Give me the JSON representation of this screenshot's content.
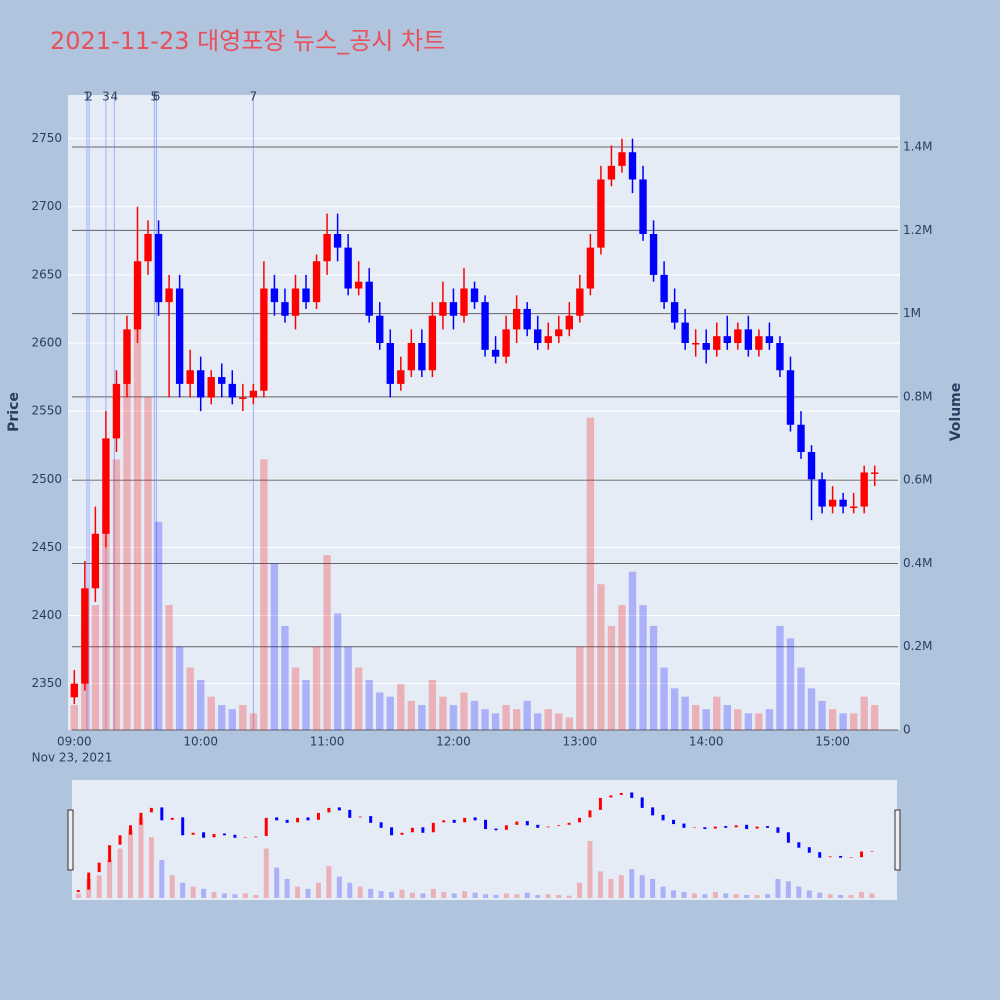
{
  "chart_data": {
    "type": "candlestick",
    "title": "2021-11-23 대영포장 뉴스_공시 차트",
    "x_date_label": "Nov 23, 2021",
    "y_title": "Price",
    "y2_title": "Volume",
    "up_color": "#ff0000",
    "down_color": "#0000ff",
    "xlim": [
      "08:57",
      "15:32"
    ],
    "xticks": [
      "09:00",
      "10:00",
      "11:00",
      "12:00",
      "13:00",
      "14:00",
      "15:00"
    ],
    "ylim": [
      2316,
      2782
    ],
    "yticks": [
      2350,
      2400,
      2450,
      2500,
      2550,
      2600,
      2650,
      2700,
      2750
    ],
    "y2lim": [
      0,
      1525000
    ],
    "y2ticks": [
      0,
      {
        "value": 200000,
        "label": "0.2M"
      },
      {
        "value": 400000,
        "label": "0.4M"
      },
      {
        "value": 600000,
        "label": "0.6M"
      },
      {
        "value": 800000,
        "label": "0.8M"
      },
      {
        "value": 1000000,
        "label": "1M"
      },
      {
        "value": 1200000,
        "label": "1.2M"
      },
      {
        "value": 1400000,
        "label": "1.4M"
      }
    ],
    "annotations": [
      {
        "x": "09:06",
        "label": "1"
      },
      {
        "x": "09:07",
        "label": "2"
      },
      {
        "x": "09:15",
        "label": "3"
      },
      {
        "x": "09:19",
        "label": "4"
      },
      {
        "x": "09:38",
        "label": "5"
      },
      {
        "x": "09:39",
        "label": "6"
      },
      {
        "x": "10:25",
        "label": "7"
      }
    ],
    "x": [
      "09:00",
      "09:05",
      "09:10",
      "09:15",
      "09:20",
      "09:25",
      "09:30",
      "09:35",
      "09:40",
      "09:45",
      "09:50",
      "09:55",
      "10:00",
      "10:05",
      "10:10",
      "10:15",
      "10:20",
      "10:25",
      "10:30",
      "10:35",
      "10:40",
      "10:45",
      "10:50",
      "10:55",
      "11:00",
      "11:05",
      "11:10",
      "11:15",
      "11:20",
      "11:25",
      "11:30",
      "11:35",
      "11:40",
      "11:45",
      "11:50",
      "11:55",
      "12:00",
      "12:05",
      "12:10",
      "12:15",
      "12:20",
      "12:25",
      "12:30",
      "12:35",
      "12:40",
      "12:45",
      "12:50",
      "12:55",
      "13:00",
      "13:05",
      "13:10",
      "13:15",
      "13:20",
      "13:25",
      "13:30",
      "13:35",
      "13:40",
      "13:45",
      "13:50",
      "13:55",
      "14:00",
      "14:05",
      "14:10",
      "14:15",
      "14:20",
      "14:25",
      "14:30",
      "14:35",
      "14:40",
      "14:45",
      "14:50",
      "14:55",
      "15:00",
      "15:05",
      "15:10",
      "15:15",
      "15:20"
    ],
    "open": [
      2340,
      2350,
      2420,
      2460,
      2530,
      2570,
      2610,
      2660,
      2680,
      2630,
      2640,
      2570,
      2580,
      2560,
      2575,
      2570,
      2560,
      2560,
      2565,
      2640,
      2630,
      2620,
      2640,
      2630,
      2660,
      2680,
      2670,
      2640,
      2645,
      2620,
      2600,
      2570,
      2580,
      2600,
      2580,
      2620,
      2630,
      2620,
      2640,
      2630,
      2595,
      2590,
      2610,
      2625,
      2610,
      2600,
      2605,
      2610,
      2620,
      2640,
      2670,
      2720,
      2730,
      2740,
      2720,
      2680,
      2650,
      2630,
      2615,
      2600,
      2600,
      2595,
      2605,
      2600,
      2610,
      2595,
      2605,
      2600,
      2580,
      2540,
      2520,
      2500,
      2480,
      2485,
      2480,
      2480,
      2505
    ],
    "high": [
      2360,
      2440,
      2480,
      2550,
      2580,
      2620,
      2700,
      2690,
      2690,
      2650,
      2650,
      2595,
      2590,
      2580,
      2585,
      2580,
      2570,
      2570,
      2660,
      2650,
      2640,
      2650,
      2650,
      2665,
      2695,
      2695,
      2680,
      2660,
      2655,
      2630,
      2610,
      2590,
      2610,
      2610,
      2630,
      2645,
      2640,
      2655,
      2645,
      2635,
      2605,
      2620,
      2635,
      2630,
      2620,
      2615,
      2620,
      2630,
      2650,
      2680,
      2730,
      2745,
      2750,
      2750,
      2730,
      2690,
      2660,
      2640,
      2625,
      2610,
      2610,
      2615,
      2620,
      2615,
      2620,
      2610,
      2615,
      2605,
      2590,
      2550,
      2525,
      2505,
      2495,
      2490,
      2490,
      2510,
      2510
    ],
    "low": [
      2335,
      2345,
      2410,
      2450,
      2520,
      2560,
      2600,
      2650,
      2620,
      2560,
      2560,
      2560,
      2550,
      2555,
      2560,
      2555,
      2550,
      2555,
      2560,
      2620,
      2615,
      2610,
      2625,
      2625,
      2650,
      2660,
      2635,
      2635,
      2615,
      2595,
      2560,
      2565,
      2575,
      2575,
      2575,
      2610,
      2610,
      2615,
      2625,
      2590,
      2585,
      2585,
      2600,
      2605,
      2595,
      2595,
      2600,
      2605,
      2615,
      2635,
      2665,
      2715,
      2725,
      2710,
      2675,
      2645,
      2625,
      2610,
      2595,
      2590,
      2585,
      2590,
      2595,
      2595,
      2590,
      2590,
      2595,
      2575,
      2535,
      2515,
      2470,
      2475,
      2475,
      2475,
      2475,
      2475,
      2495
    ],
    "close": [
      2350,
      2420,
      2460,
      2530,
      2570,
      2610,
      2660,
      2680,
      2630,
      2640,
      2570,
      2580,
      2560,
      2575,
      2570,
      2560,
      2560,
      2565,
      2640,
      2630,
      2620,
      2640,
      2630,
      2660,
      2680,
      2670,
      2640,
      2645,
      2620,
      2600,
      2570,
      2580,
      2600,
      2580,
      2620,
      2630,
      2620,
      2640,
      2630,
      2595,
      2590,
      2610,
      2625,
      2610,
      2600,
      2605,
      2610,
      2620,
      2640,
      2670,
      2720,
      2730,
      2740,
      2720,
      2680,
      2650,
      2630,
      2615,
      2600,
      2600,
      2595,
      2605,
      2600,
      2610,
      2595,
      2605,
      2600,
      2580,
      2540,
      2520,
      2500,
      2480,
      2485,
      2480,
      2480,
      2505,
      2505
    ],
    "volume": [
      60000,
      250000,
      300000,
      500000,
      650000,
      900000,
      1050000,
      800000,
      500000,
      300000,
      200000,
      150000,
      120000,
      80000,
      60000,
      50000,
      60000,
      40000,
      650000,
      400000,
      250000,
      150000,
      120000,
      200000,
      420000,
      280000,
      200000,
      150000,
      120000,
      90000,
      80000,
      110000,
      70000,
      60000,
      120000,
      80000,
      60000,
      90000,
      70000,
      50000,
      40000,
      60000,
      50000,
      70000,
      40000,
      50000,
      40000,
      30000,
      200000,
      750000,
      350000,
      250000,
      300000,
      380000,
      300000,
      250000,
      150000,
      100000,
      80000,
      60000,
      50000,
      80000,
      60000,
      50000,
      40000,
      40000,
      50000,
      250000,
      220000,
      150000,
      100000,
      70000,
      50000,
      40000,
      40000,
      80000,
      60000
    ]
  }
}
